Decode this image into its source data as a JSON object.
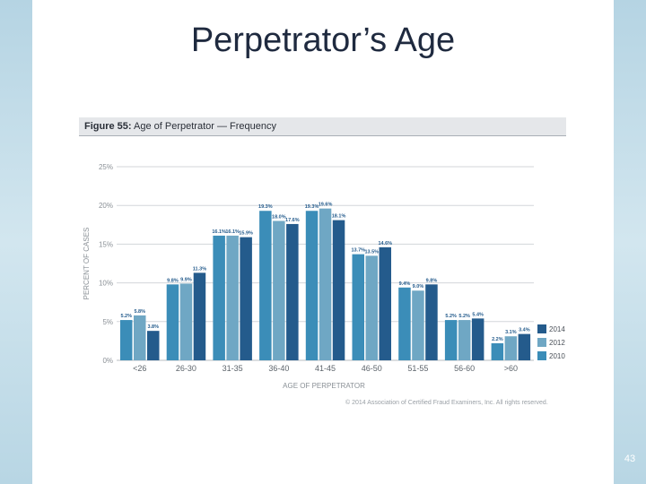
{
  "slide": {
    "title": "Perpetrator’s Age",
    "page_number": "43"
  },
  "figure": {
    "label": "Figure 55:",
    "title": "Age of Perpetrator — Frequency",
    "copyright": "© 2014 Association of Certified Fraud Examiners, Inc. All rights reserved."
  },
  "colors": {
    "2014": "#245b8c",
    "2012": "#6fa7c4",
    "2010": "#3b8db8",
    "grid": "#d3d6da",
    "axis_text": "#8a9096"
  },
  "chart_data": {
    "type": "bar",
    "title": "Age of Perpetrator — Frequency",
    "xlabel": "AGE OF PERPETRATOR",
    "ylabel": "PERCENT OF CASES",
    "ylim": [
      0,
      25
    ],
    "yticks": [
      "0%",
      "5%",
      "10%",
      "15%",
      "20%",
      "25%"
    ],
    "categories": [
      "<26",
      "26-30",
      "31-35",
      "36-40",
      "41-45",
      "46-50",
      "51-55",
      "56-60",
      ">60"
    ],
    "series": [
      {
        "name": "2010",
        "values": [
          5.2,
          9.8,
          16.1,
          19.3,
          19.3,
          13.7,
          9.4,
          5.2,
          2.2
        ],
        "labels": [
          "5.2%",
          "9.8%",
          "16.1%",
          "19.3%",
          "19.3%",
          "13.7%",
          "9.4%",
          "5.2%",
          "2.2%"
        ]
      },
      {
        "name": "2012",
        "values": [
          5.8,
          9.9,
          16.1,
          18.0,
          19.6,
          13.5,
          9.0,
          5.2,
          3.1
        ],
        "labels": [
          "5.8%",
          "9.9%",
          "16.1%",
          "18.0%",
          "19.6%",
          "13.5%",
          "9.0%",
          "5.2%",
          "3.1%"
        ]
      },
      {
        "name": "2014",
        "values": [
          3.8,
          11.3,
          15.9,
          17.6,
          18.1,
          14.6,
          9.8,
          5.4,
          3.4
        ],
        "labels": [
          "3.8%",
          "11.3%",
          "15.9%",
          "17.6%",
          "18.1%",
          "14.6%",
          "9.8%",
          "5.4%",
          "3.4%"
        ]
      }
    ],
    "legend": [
      "2014",
      "2012",
      "2010"
    ],
    "legend_position": "right",
    "grid": true
  }
}
